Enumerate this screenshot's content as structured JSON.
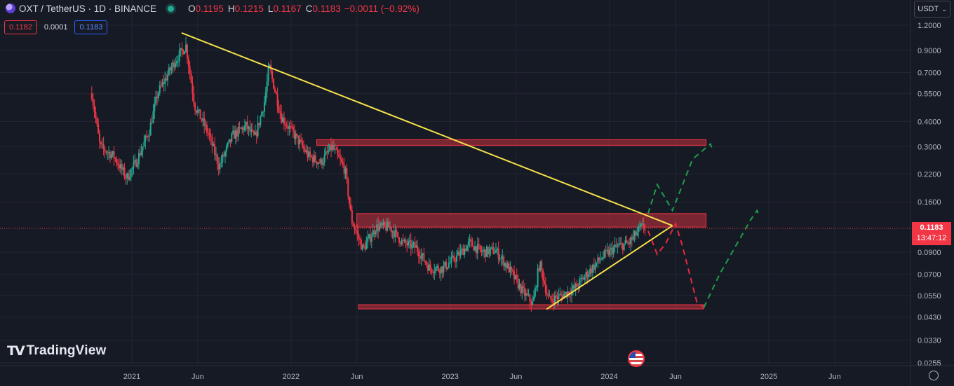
{
  "header": {
    "title": "OXT / TetherUS · 1D · BINANCE",
    "ohlc": {
      "o_label": "O",
      "o": "0.1195",
      "h_label": "H",
      "h": "0.1215",
      "l_label": "L",
      "l": "0.1167",
      "c_label": "C",
      "c": "0.1183"
    },
    "change": "−0.0011 (−0.92%)"
  },
  "trade": {
    "sell": "0.1182",
    "spread": "0.0001",
    "buy": "0.1183"
  },
  "currency": {
    "label": "USDT"
  },
  "brand": {
    "name": "TradingView"
  },
  "last_price": {
    "price": "0.1183",
    "countdown": "13:47:12"
  },
  "colors": {
    "up": "#22ab94",
    "down": "#f23645",
    "trend": "#f5e14a",
    "bg": "#161a25",
    "zone": "#f23645"
  },
  "chart_data": {
    "type": "candlestick",
    "symbol": "OXTUSDT",
    "timeframe": "1D",
    "y_scale": "log",
    "y_ticks": [
      1.2,
      0.9,
      0.7,
      0.55,
      0.4,
      0.3,
      0.22,
      0.16,
      0.09,
      0.07,
      0.055,
      0.043,
      0.033,
      0.0255
    ],
    "y_tick_labels": [
      "1.2000",
      "0.9000",
      "0.7000",
      "0.5500",
      "0.4000",
      "0.3000",
      "0.2200",
      "0.1600",
      "0.0900",
      "0.0700",
      "0.0550",
      "0.0430",
      "0.0330",
      "0.0255"
    ],
    "x_ticks": [
      {
        "label": "2021",
        "date": "2021-01-01"
      },
      {
        "label": "Jun",
        "date": "2021-06-01"
      },
      {
        "label": "2022",
        "date": "2022-01-01"
      },
      {
        "label": "Jun",
        "date": "2022-06-01"
      },
      {
        "label": "2023",
        "date": "2023-01-01"
      },
      {
        "label": "Jun",
        "date": "2023-06-01"
      },
      {
        "label": "2024",
        "date": "2024-01-01"
      },
      {
        "label": "Jun",
        "date": "2024-06-01"
      },
      {
        "label": "2025",
        "date": "2025-01-01"
      },
      {
        "label": "Jun",
        "date": "2025-06-01"
      }
    ],
    "price_path": [
      [
        "2020-10-01",
        0.55
      ],
      [
        "2020-10-20",
        0.3
      ],
      [
        "2020-11-20",
        0.27
      ],
      [
        "2020-12-20",
        0.21
      ],
      [
        "2021-01-10",
        0.25
      ],
      [
        "2021-02-10",
        0.36
      ],
      [
        "2021-03-01",
        0.55
      ],
      [
        "2021-04-10",
        0.8
      ],
      [
        "2021-05-05",
        0.95
      ],
      [
        "2021-05-25",
        0.48
      ],
      [
        "2021-06-25",
        0.35
      ],
      [
        "2021-07-20",
        0.24
      ],
      [
        "2021-08-20",
        0.34
      ],
      [
        "2021-09-20",
        0.38
      ],
      [
        "2021-10-10",
        0.33
      ],
      [
        "2021-11-01",
        0.5
      ],
      [
        "2021-11-12",
        0.75
      ],
      [
        "2021-12-10",
        0.42
      ],
      [
        "2022-01-10",
        0.34
      ],
      [
        "2022-02-10",
        0.27
      ],
      [
        "2022-03-10",
        0.25
      ],
      [
        "2022-04-05",
        0.3
      ],
      [
        "2022-05-05",
        0.23
      ],
      [
        "2022-05-20",
        0.13
      ],
      [
        "2022-06-15",
        0.093
      ],
      [
        "2022-07-15",
        0.12
      ],
      [
        "2022-08-15",
        0.12
      ],
      [
        "2022-09-15",
        0.1
      ],
      [
        "2022-10-15",
        0.095
      ],
      [
        "2022-11-15",
        0.075
      ],
      [
        "2022-12-15",
        0.075
      ],
      [
        "2023-01-15",
        0.085
      ],
      [
        "2023-02-15",
        0.1
      ],
      [
        "2023-03-15",
        0.09
      ],
      [
        "2023-04-15",
        0.092
      ],
      [
        "2023-05-15",
        0.075
      ],
      [
        "2023-06-15",
        0.058
      ],
      [
        "2023-07-10",
        0.05
      ],
      [
        "2023-07-25",
        0.08
      ],
      [
        "2023-08-15",
        0.052
      ],
      [
        "2023-09-15",
        0.055
      ],
      [
        "2023-10-15",
        0.06
      ],
      [
        "2023-11-15",
        0.072
      ],
      [
        "2023-12-15",
        0.085
      ],
      [
        "2024-01-15",
        0.095
      ],
      [
        "2024-02-15",
        0.1
      ],
      [
        "2024-03-15",
        0.12
      ],
      [
        "2024-03-25",
        0.1183
      ]
    ],
    "last_price": 0.1183,
    "zones": [
      {
        "from": "2022-03-01",
        "to": "2024-08-10",
        "low": 0.305,
        "high": 0.325
      },
      {
        "from": "2022-06-01",
        "to": "2024-08-10",
        "low": 0.12,
        "high": 0.14
      },
      {
        "from": "2022-06-05",
        "to": "2024-08-05",
        "low": 0.0475,
        "high": 0.0495
      }
    ],
    "trendlines": [
      {
        "from": [
          "2021-04-25",
          1.1
        ],
        "to": [
          "2024-05-25",
          0.122
        ]
      },
      {
        "from": [
          "2023-08-10",
          0.047
        ],
        "to": [
          "2024-05-25",
          0.122
        ]
      }
    ],
    "projections": [
      {
        "direction": "up",
        "points": [
          [
            "2024-03-30",
            0.14
          ],
          [
            "2024-04-20",
            0.195
          ],
          [
            "2024-05-25",
            0.145
          ],
          [
            "2024-07-10",
            0.26
          ],
          [
            "2024-08-20",
            0.31
          ],
          [
            "2024-08-25",
            0.29
          ]
        ]
      },
      {
        "direction": "down",
        "points": [
          [
            "2024-03-30",
            0.115
          ],
          [
            "2024-04-20",
            0.088
          ],
          [
            "2024-05-10",
            0.1
          ],
          [
            "2024-06-01",
            0.125
          ],
          [
            "2024-06-15",
            0.1
          ],
          [
            "2024-07-20",
            0.051
          ],
          [
            "2024-08-05",
            0.048
          ]
        ]
      },
      {
        "direction": "up",
        "points": [
          [
            "2024-08-05",
            0.048
          ],
          [
            "2024-09-10",
            0.07
          ],
          [
            "2024-11-20",
            0.13
          ],
          [
            "2024-12-05",
            0.145
          ],
          [
            "2024-12-10",
            0.135
          ]
        ]
      }
    ]
  }
}
